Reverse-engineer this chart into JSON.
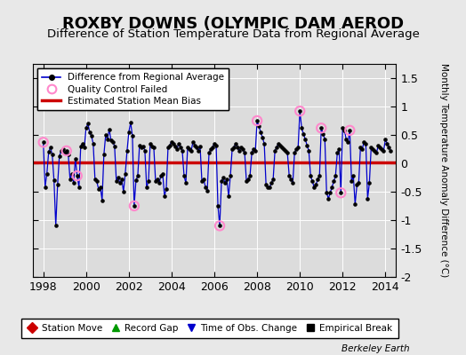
{
  "title": "ROXBY DOWNS (OLYMPIC DAM AEROD",
  "subtitle": "Difference of Station Temperature Data from Regional Average",
  "ylabel_right": "Monthly Temperature Anomaly Difference (°C)",
  "xlim": [
    1997.5,
    2014.5
  ],
  "ylim": [
    -2,
    1.75
  ],
  "yticks": [
    -2,
    -1.5,
    -1,
    -0.5,
    0,
    0.5,
    1,
    1.5
  ],
  "ytick_labels": [
    "-2",
    "-1.5",
    "-1",
    "-0.5",
    "0",
    "0.5",
    "1",
    "1.5"
  ],
  "xticks": [
    1998,
    2000,
    2002,
    2004,
    2006,
    2008,
    2010,
    2012,
    2014
  ],
  "mean_bias": 0.02,
  "plot_bg": "#dcdcdc",
  "fig_bg": "#e8e8e8",
  "line_color": "#0000cc",
  "bias_color": "#cc0000",
  "qc_edge_color": "#ff88cc",
  "title_fontsize": 13,
  "subtitle_fontsize": 9.5,
  "berkeley_earth_label": "Berkeley Earth",
  "time_series": [
    [
      1998.0,
      0.37
    ],
    [
      1998.083,
      -0.42
    ],
    [
      1998.167,
      -0.18
    ],
    [
      1998.25,
      0.2
    ],
    [
      1998.333,
      0.28
    ],
    [
      1998.417,
      0.15
    ],
    [
      1998.5,
      -0.3
    ],
    [
      1998.583,
      -1.1
    ],
    [
      1998.667,
      -0.38
    ],
    [
      1998.75,
      0.12
    ],
    [
      1998.833,
      0.22
    ],
    [
      1998.917,
      0.25
    ],
    [
      1999.0,
      0.18
    ],
    [
      1999.083,
      0.22
    ],
    [
      1999.167,
      0.15
    ],
    [
      1999.25,
      -0.28
    ],
    [
      1999.333,
      -0.18
    ],
    [
      1999.417,
      -0.35
    ],
    [
      1999.5,
      0.08
    ],
    [
      1999.583,
      -0.22
    ],
    [
      1999.667,
      -0.42
    ],
    [
      1999.75,
      0.3
    ],
    [
      1999.833,
      0.35
    ],
    [
      1999.917,
      0.28
    ],
    [
      2000.0,
      0.62
    ],
    [
      2000.083,
      0.7
    ],
    [
      2000.167,
      0.55
    ],
    [
      2000.25,
      0.48
    ],
    [
      2000.333,
      0.35
    ],
    [
      2000.417,
      -0.28
    ],
    [
      2000.5,
      -0.32
    ],
    [
      2000.583,
      -0.45
    ],
    [
      2000.667,
      -0.42
    ],
    [
      2000.75,
      -0.65
    ],
    [
      2000.833,
      0.15
    ],
    [
      2000.917,
      0.5
    ],
    [
      2001.0,
      0.42
    ],
    [
      2001.083,
      0.6
    ],
    [
      2001.167,
      0.4
    ],
    [
      2001.25,
      0.38
    ],
    [
      2001.333,
      0.3
    ],
    [
      2001.417,
      -0.32
    ],
    [
      2001.5,
      -0.25
    ],
    [
      2001.583,
      -0.35
    ],
    [
      2001.667,
      -0.28
    ],
    [
      2001.75,
      -0.5
    ],
    [
      2001.833,
      -0.18
    ],
    [
      2001.917,
      0.22
    ],
    [
      2002.0,
      0.55
    ],
    [
      2002.083,
      0.72
    ],
    [
      2002.167,
      0.48
    ],
    [
      2002.25,
      -0.75
    ],
    [
      2002.333,
      -0.3
    ],
    [
      2002.417,
      -0.22
    ],
    [
      2002.5,
      0.32
    ],
    [
      2002.583,
      0.28
    ],
    [
      2002.667,
      0.3
    ],
    [
      2002.75,
      0.22
    ],
    [
      2002.833,
      -0.42
    ],
    [
      2002.917,
      -0.32
    ],
    [
      2003.0,
      0.35
    ],
    [
      2003.083,
      0.3
    ],
    [
      2003.167,
      0.28
    ],
    [
      2003.25,
      -0.32
    ],
    [
      2003.333,
      -0.28
    ],
    [
      2003.417,
      -0.35
    ],
    [
      2003.5,
      -0.22
    ],
    [
      2003.583,
      -0.18
    ],
    [
      2003.667,
      -0.58
    ],
    [
      2003.75,
      -0.45
    ],
    [
      2003.833,
      0.28
    ],
    [
      2003.917,
      0.32
    ],
    [
      2004.0,
      0.38
    ],
    [
      2004.083,
      0.35
    ],
    [
      2004.167,
      0.3
    ],
    [
      2004.25,
      0.25
    ],
    [
      2004.333,
      0.35
    ],
    [
      2004.417,
      0.28
    ],
    [
      2004.5,
      0.22
    ],
    [
      2004.583,
      -0.22
    ],
    [
      2004.667,
      -0.35
    ],
    [
      2004.75,
      0.28
    ],
    [
      2004.833,
      0.25
    ],
    [
      2004.917,
      0.22
    ],
    [
      2005.0,
      0.38
    ],
    [
      2005.083,
      0.32
    ],
    [
      2005.167,
      0.28
    ],
    [
      2005.25,
      0.22
    ],
    [
      2005.333,
      0.3
    ],
    [
      2005.417,
      -0.32
    ],
    [
      2005.5,
      -0.28
    ],
    [
      2005.583,
      -0.42
    ],
    [
      2005.667,
      -0.48
    ],
    [
      2005.75,
      0.18
    ],
    [
      2005.833,
      0.25
    ],
    [
      2005.917,
      0.28
    ],
    [
      2006.0,
      0.35
    ],
    [
      2006.083,
      0.32
    ],
    [
      2006.167,
      -0.75
    ],
    [
      2006.25,
      -1.1
    ],
    [
      2006.333,
      -0.32
    ],
    [
      2006.417,
      -0.25
    ],
    [
      2006.5,
      -0.35
    ],
    [
      2006.583,
      -0.28
    ],
    [
      2006.667,
      -0.58
    ],
    [
      2006.75,
      -0.22
    ],
    [
      2006.833,
      0.25
    ],
    [
      2006.917,
      0.28
    ],
    [
      2007.0,
      0.35
    ],
    [
      2007.083,
      0.28
    ],
    [
      2007.167,
      0.22
    ],
    [
      2007.25,
      0.28
    ],
    [
      2007.333,
      0.25
    ],
    [
      2007.417,
      0.18
    ],
    [
      2007.5,
      -0.32
    ],
    [
      2007.583,
      -0.28
    ],
    [
      2007.667,
      -0.22
    ],
    [
      2007.75,
      0.18
    ],
    [
      2007.833,
      0.25
    ],
    [
      2007.917,
      0.22
    ],
    [
      2008.0,
      0.75
    ],
    [
      2008.083,
      0.65
    ],
    [
      2008.167,
      0.55
    ],
    [
      2008.25,
      0.45
    ],
    [
      2008.333,
      0.35
    ],
    [
      2008.417,
      -0.38
    ],
    [
      2008.5,
      -0.42
    ],
    [
      2008.583,
      -0.42
    ],
    [
      2008.667,
      -0.35
    ],
    [
      2008.75,
      -0.28
    ],
    [
      2008.833,
      0.22
    ],
    [
      2008.917,
      0.28
    ],
    [
      2009.0,
      0.35
    ],
    [
      2009.083,
      0.32
    ],
    [
      2009.167,
      0.28
    ],
    [
      2009.25,
      0.25
    ],
    [
      2009.333,
      0.22
    ],
    [
      2009.417,
      0.18
    ],
    [
      2009.5,
      -0.22
    ],
    [
      2009.583,
      -0.28
    ],
    [
      2009.667,
      -0.35
    ],
    [
      2009.75,
      0.18
    ],
    [
      2009.833,
      0.25
    ],
    [
      2009.917,
      0.28
    ],
    [
      2010.0,
      0.92
    ],
    [
      2010.083,
      0.62
    ],
    [
      2010.167,
      0.52
    ],
    [
      2010.25,
      0.42
    ],
    [
      2010.333,
      0.32
    ],
    [
      2010.417,
      0.22
    ],
    [
      2010.5,
      -0.22
    ],
    [
      2010.583,
      -0.32
    ],
    [
      2010.667,
      -0.42
    ],
    [
      2010.75,
      -0.38
    ],
    [
      2010.833,
      -0.28
    ],
    [
      2010.917,
      -0.22
    ],
    [
      2011.0,
      0.62
    ],
    [
      2011.083,
      0.52
    ],
    [
      2011.167,
      0.42
    ],
    [
      2011.25,
      -0.52
    ],
    [
      2011.333,
      -0.62
    ],
    [
      2011.417,
      -0.52
    ],
    [
      2011.5,
      -0.42
    ],
    [
      2011.583,
      -0.32
    ],
    [
      2011.667,
      -0.22
    ],
    [
      2011.75,
      0.18
    ],
    [
      2011.833,
      0.25
    ],
    [
      2011.917,
      -0.52
    ],
    [
      2012.0,
      0.62
    ],
    [
      2012.083,
      0.58
    ],
    [
      2012.167,
      0.42
    ],
    [
      2012.25,
      0.38
    ],
    [
      2012.333,
      0.58
    ],
    [
      2012.417,
      -0.32
    ],
    [
      2012.5,
      -0.22
    ],
    [
      2012.583,
      -0.72
    ],
    [
      2012.667,
      -0.38
    ],
    [
      2012.75,
      -0.35
    ],
    [
      2012.833,
      0.28
    ],
    [
      2012.917,
      0.25
    ],
    [
      2013.0,
      0.38
    ],
    [
      2013.083,
      0.35
    ],
    [
      2013.167,
      -0.62
    ],
    [
      2013.25,
      -0.35
    ],
    [
      2013.333,
      0.28
    ],
    [
      2013.417,
      0.25
    ],
    [
      2013.5,
      0.22
    ],
    [
      2013.583,
      0.18
    ],
    [
      2013.667,
      0.32
    ],
    [
      2013.75,
      0.28
    ],
    [
      2013.833,
      0.25
    ],
    [
      2013.917,
      0.22
    ],
    [
      2014.0,
      0.42
    ],
    [
      2014.083,
      0.35
    ],
    [
      2014.167,
      0.28
    ],
    [
      2014.25,
      0.22
    ]
  ],
  "qc_failed_points": [
    [
      1998.0,
      0.37
    ],
    [
      1999.083,
      0.22
    ],
    [
      1999.583,
      -0.22
    ],
    [
      2002.25,
      -0.75
    ],
    [
      2006.25,
      -1.1
    ],
    [
      2008.0,
      0.75
    ],
    [
      2010.0,
      0.92
    ],
    [
      2011.0,
      0.62
    ],
    [
      2011.917,
      -0.52
    ],
    [
      2012.333,
      0.58
    ]
  ]
}
